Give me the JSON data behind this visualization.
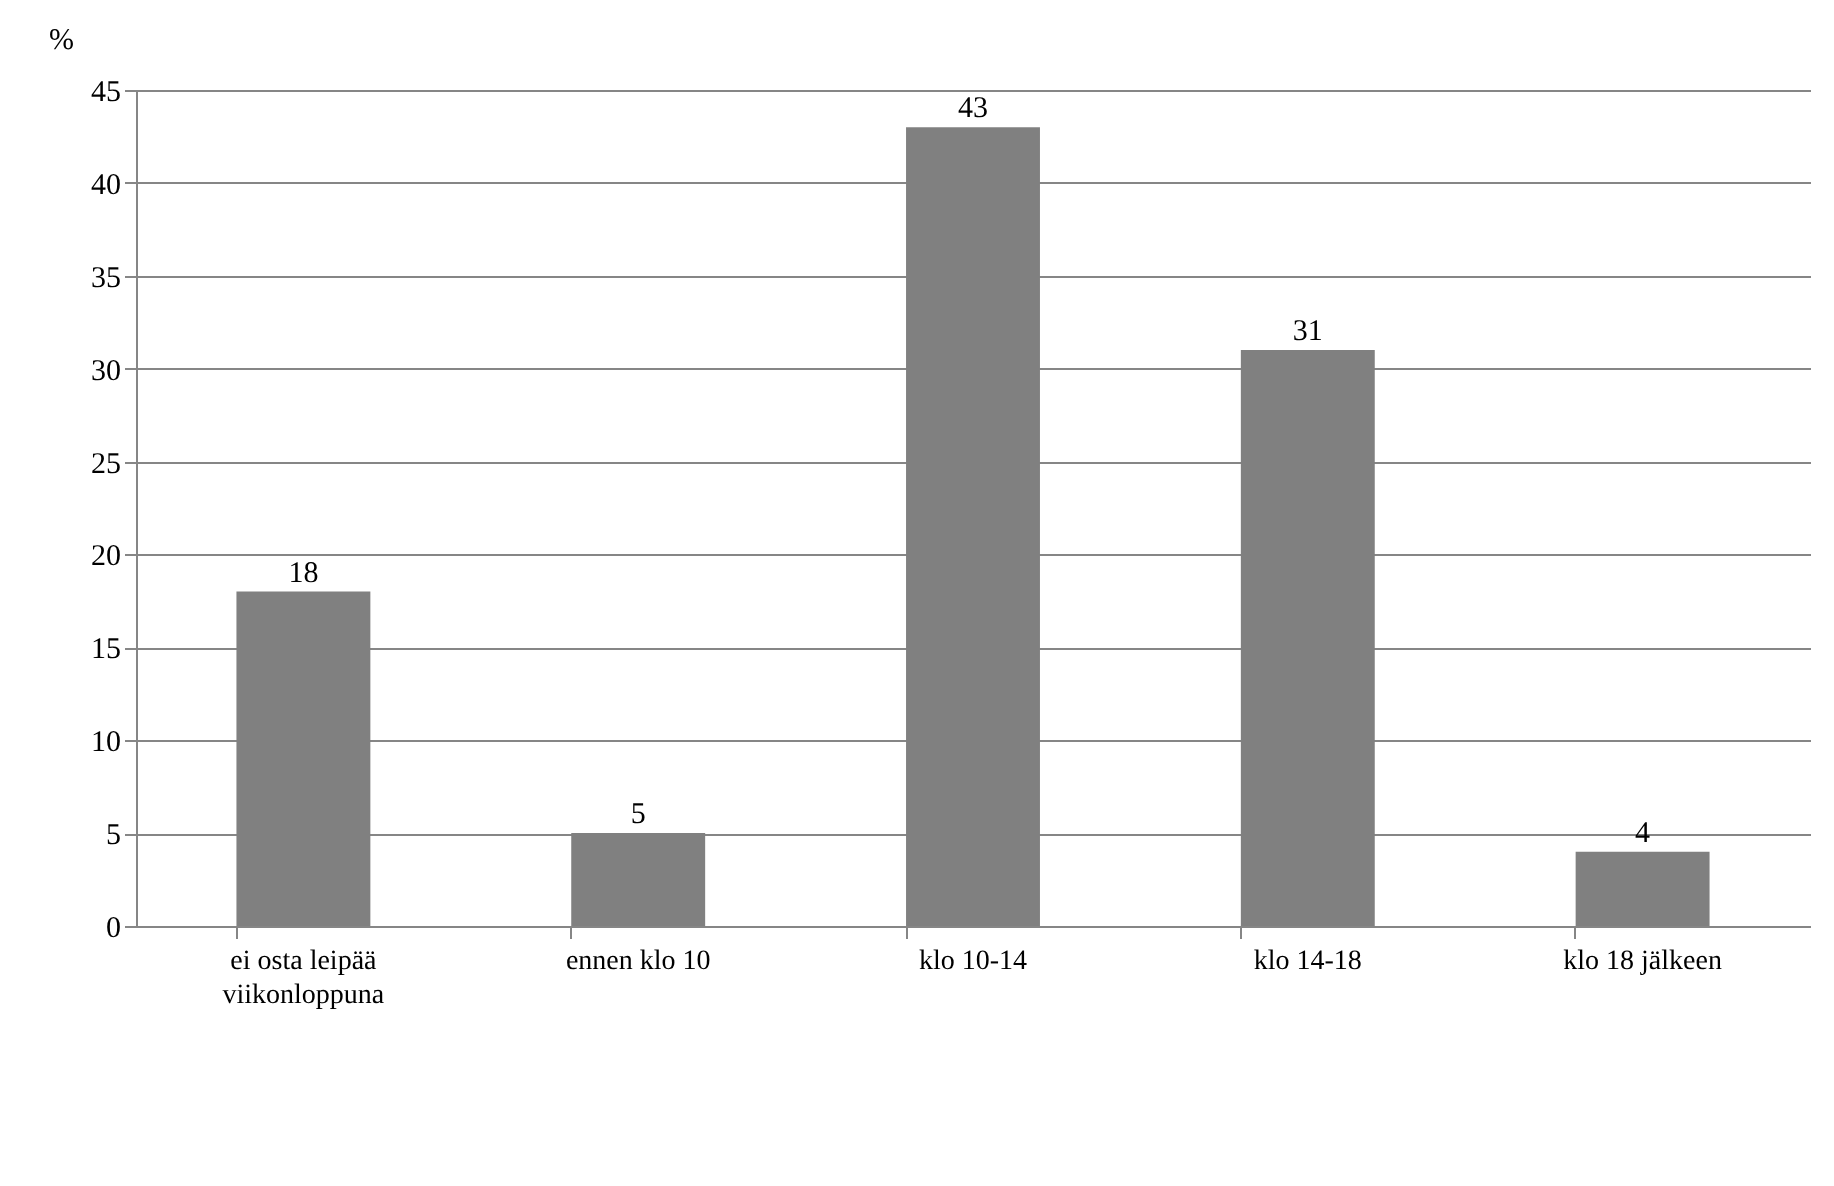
{
  "chart_data": {
    "type": "bar",
    "ylabel": "%",
    "categories": [
      "ei osta leipää viikonloppuna",
      "ennen klo 10",
      "klo 10-14",
      "klo 14-18",
      "klo 18 jälkeen"
    ],
    "values": [
      18,
      5,
      43,
      31,
      4
    ],
    "color": "#808080",
    "data_labels": true,
    "ylim": [
      0,
      45
    ],
    "yticks": [
      0,
      5,
      10,
      15,
      20,
      25,
      30,
      35,
      40,
      45
    ],
    "grid": "y"
  }
}
